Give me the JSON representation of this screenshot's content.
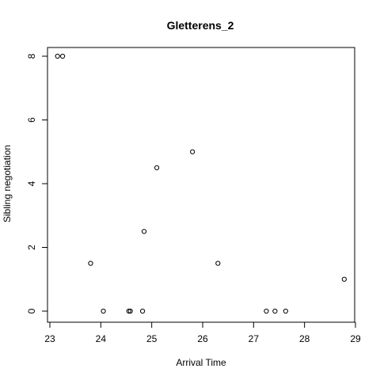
{
  "chart_data": {
    "type": "scatter",
    "title": "Gletterens_2",
    "xlabel": "Arrival Time",
    "ylabel": "Sibling negotiation",
    "xlim": [
      23,
      29
    ],
    "ylim": [
      0,
      8
    ],
    "xticks": [
      23,
      24,
      25,
      26,
      27,
      28,
      29
    ],
    "yticks": [
      0,
      2,
      4,
      6,
      8
    ],
    "grid": false,
    "marker": "open-circle",
    "colors": {
      "points": "#000000",
      "axes": "#000000",
      "background": "#ffffff"
    },
    "series": [
      {
        "points": [
          {
            "x": 23.15,
            "y": 8
          },
          {
            "x": 23.25,
            "y": 8
          },
          {
            "x": 23.8,
            "y": 1.5
          },
          {
            "x": 24.05,
            "y": 0
          },
          {
            "x": 24.55,
            "y": 0
          },
          {
            "x": 24.58,
            "y": 0
          },
          {
            "x": 24.82,
            "y": 0
          },
          {
            "x": 24.85,
            "y": 2.5
          },
          {
            "x": 25.1,
            "y": 4.5
          },
          {
            "x": 25.8,
            "y": 5
          },
          {
            "x": 26.3,
            "y": 1.5
          },
          {
            "x": 27.25,
            "y": 0
          },
          {
            "x": 27.42,
            "y": 0
          },
          {
            "x": 27.63,
            "y": 0
          },
          {
            "x": 28.78,
            "y": 1
          }
        ]
      }
    ]
  }
}
